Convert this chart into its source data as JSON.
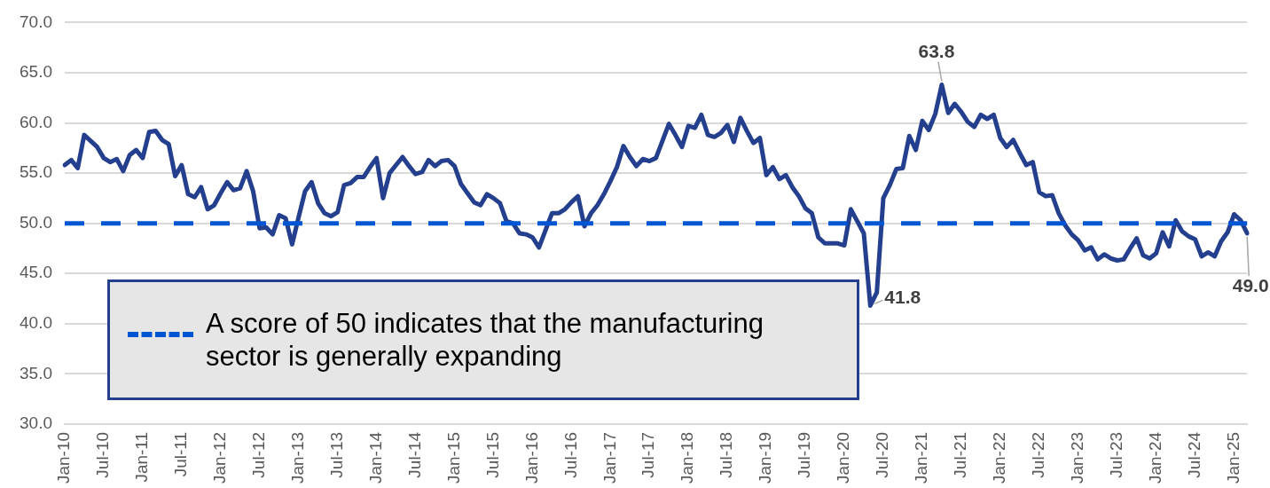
{
  "chart_data": {
    "type": "line",
    "categories": [
      "Jan-10",
      null,
      null,
      null,
      null,
      null,
      "Jul-10",
      null,
      null,
      null,
      null,
      null,
      "Jan-11",
      null,
      null,
      null,
      null,
      null,
      "Jul-11",
      null,
      null,
      null,
      null,
      null,
      "Jan-12",
      null,
      null,
      null,
      null,
      null,
      "Jul-12",
      null,
      null,
      null,
      null,
      null,
      "Jan-13",
      null,
      null,
      null,
      null,
      null,
      "Jul-13",
      null,
      null,
      null,
      null,
      null,
      "Jan-14",
      null,
      null,
      null,
      null,
      null,
      "Jul-14",
      null,
      null,
      null,
      null,
      null,
      "Jan-15",
      null,
      null,
      null,
      null,
      null,
      "Jul-15",
      null,
      null,
      null,
      null,
      null,
      "Jan-16",
      null,
      null,
      null,
      null,
      null,
      "Jul-16",
      null,
      null,
      null,
      null,
      null,
      "Jan-17",
      null,
      null,
      null,
      null,
      null,
      "Jul-17",
      null,
      null,
      null,
      null,
      null,
      "Jan-18",
      null,
      null,
      null,
      null,
      null,
      "Jul-18",
      null,
      null,
      null,
      null,
      null,
      "Jan-19",
      null,
      null,
      null,
      null,
      null,
      "Jul-19",
      null,
      null,
      null,
      null,
      null,
      "Jan-20",
      null,
      null,
      null,
      null,
      null,
      "Jul-20",
      null,
      null,
      null,
      null,
      null,
      "Jan-21",
      null,
      null,
      null,
      null,
      null,
      "Jul-21",
      null,
      null,
      null,
      null,
      null,
      "Jan-22",
      null,
      null,
      null,
      null,
      null,
      "Jul-22",
      null,
      null,
      null,
      null,
      null,
      "Jan-23",
      null,
      null,
      null,
      null,
      null,
      "Jul-23",
      null,
      null,
      null,
      null,
      null,
      "Jan-24",
      null,
      null,
      null,
      null,
      null,
      "Jul-24",
      null,
      null,
      null,
      null,
      null,
      "Jan-25",
      null,
      null
    ],
    "series": [
      {
        "color": "#233f8d",
        "values": [
          55.8,
          56.3,
          55.5,
          58.8,
          58.2,
          57.6,
          56.5,
          56.1,
          56.4,
          55.2,
          56.8,
          57.3,
          56.5,
          59.1,
          59.2,
          58.3,
          57.9,
          54.7,
          55.8,
          52.9,
          52.6,
          53.6,
          51.4,
          51.8,
          53.0,
          54.1,
          53.3,
          53.5,
          55.2,
          53.2,
          49.5,
          49.6,
          48.9,
          50.8,
          50.5,
          47.9,
          50.6,
          53.2,
          54.1,
          52.0,
          51.0,
          50.7,
          51.1,
          53.8,
          54.0,
          54.6,
          54.6,
          55.6,
          56.5,
          52.5,
          55.0,
          55.8,
          56.6,
          55.7,
          54.9,
          55.1,
          56.3,
          55.7,
          56.2,
          56.3,
          55.7,
          53.9,
          53.0,
          52.1,
          51.8,
          52.9,
          52.5,
          52.0,
          50.2,
          50.0,
          49.0,
          48.9,
          48.6,
          47.6,
          49.3,
          51.0,
          51.0,
          51.4,
          52.1,
          52.7,
          49.7,
          51.0,
          51.8,
          52.9,
          54.2,
          55.6,
          57.7,
          56.6,
          55.7,
          56.4,
          56.2,
          56.5,
          58.2,
          59.9,
          58.8,
          57.6,
          59.7,
          59.5,
          60.8,
          58.8,
          58.6,
          59.0,
          59.8,
          58.1,
          60.5,
          59.2,
          58.0,
          58.5,
          54.8,
          55.6,
          54.4,
          54.8,
          53.6,
          52.7,
          51.5,
          51.0,
          48.6,
          48.0,
          48.0,
          48.0,
          47.8,
          51.4,
          50.2,
          49.0,
          41.8,
          43.1,
          52.5,
          53.8,
          55.4,
          55.5,
          58.7,
          57.3,
          60.2,
          59.3,
          60.9,
          63.8,
          61.0,
          61.9,
          61.1,
          60.1,
          59.6,
          60.8,
          60.4,
          60.8,
          58.5,
          57.6,
          58.3,
          57.0,
          55.8,
          56.1,
          53.1,
          52.7,
          52.8,
          51.0,
          49.8,
          48.9,
          48.3,
          47.3,
          47.6,
          46.4,
          46.9,
          46.5,
          46.3,
          46.4,
          47.5,
          48.5,
          46.8,
          46.5,
          47.0,
          49.1,
          47.7,
          50.3,
          49.2,
          48.7,
          48.4,
          46.7,
          47.1,
          46.7,
          48.2,
          49.1,
          50.9,
          50.3,
          49.0
        ],
        "value_labels": [
          null,
          null,
          null,
          null,
          null,
          null,
          null,
          null,
          null,
          null,
          null,
          null,
          null,
          null,
          null,
          null,
          null,
          null,
          null,
          null,
          null,
          null,
          null,
          null,
          null,
          null,
          null,
          null,
          null,
          null,
          null,
          null,
          null,
          null,
          null,
          null,
          null,
          null,
          null,
          null,
          null,
          null,
          null,
          null,
          null,
          null,
          null,
          null,
          null,
          null,
          null,
          null,
          null,
          null,
          null,
          null,
          null,
          null,
          null,
          null,
          null,
          null,
          null,
          null,
          null,
          null,
          null,
          null,
          null,
          null,
          null,
          null,
          null,
          null,
          null,
          null,
          null,
          null,
          null,
          null,
          null,
          null,
          null,
          null,
          null,
          null,
          null,
          null,
          null,
          null,
          null,
          null,
          null,
          null,
          null,
          null,
          null,
          null,
          null,
          null,
          null,
          null,
          null,
          null,
          null,
          null,
          null,
          null,
          null,
          null,
          null,
          null,
          null,
          null,
          null,
          null,
          null,
          null,
          null,
          null,
          null,
          null,
          null,
          null,
          "41.8",
          null,
          null,
          null,
          null,
          null,
          null,
          null,
          null,
          null,
          null,
          "63.8",
          null,
          null,
          null,
          null,
          null,
          null,
          null,
          null,
          null,
          null,
          null,
          null,
          null,
          null,
          null,
          null,
          null,
          null,
          null,
          null,
          null,
          null,
          null,
          null,
          null,
          null,
          null,
          null,
          null,
          null,
          null,
          null,
          null,
          null,
          null,
          null,
          null,
          null,
          null,
          null,
          null,
          null,
          null,
          null,
          null,
          null,
          "49.0"
        ]
      }
    ],
    "ylim": [
      30,
      70
    ],
    "yticks": [
      {
        "value": 30,
        "label": "30.0"
      },
      {
        "value": 35,
        "label": "35.0"
      },
      {
        "value": 40,
        "label": "40.0"
      },
      {
        "value": 45,
        "label": "45.0"
      },
      {
        "value": 50,
        "label": "50.0"
      },
      {
        "value": 55,
        "label": "55.0"
      },
      {
        "value": 60,
        "label": "60.0"
      },
      {
        "value": 65,
        "label": "65.0"
      },
      {
        "value": 70,
        "label": "70.0"
      }
    ],
    "grid": "y",
    "marker": "none",
    "line_style": "solid",
    "ref_lines": [
      {
        "axis": "y",
        "value": 50,
        "label": "A score of 50 indicates that the manufacturing sector is generally expanding",
        "color": "#0055d4",
        "line_style": "dashed"
      }
    ]
  }
}
